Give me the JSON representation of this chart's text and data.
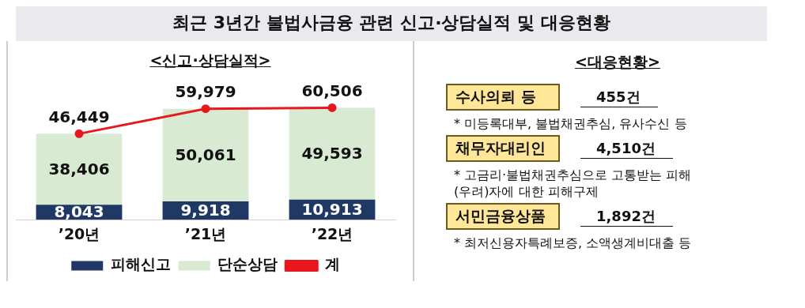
{
  "chart_data": [
    {
      "type": "bar",
      "title": "최근 3년간 불법사금융 관련 신고·상담실적 및 대응현황",
      "subtitle": "<신고·상담실적>",
      "categories": [
        "’20년",
        "’21년",
        "’22년"
      ],
      "stacked": true,
      "legend": "bottom",
      "grid": false,
      "series": [
        {
          "name": "피해신고",
          "color": "#203864",
          "values": [
            8043,
            9918,
            10913
          ],
          "value_labels": [
            "8,043",
            "9,918",
            "10,913"
          ]
        },
        {
          "name": "단순상담",
          "color": "#d9ead3",
          "values": [
            38406,
            50061,
            49593
          ],
          "value_labels": [
            "38,406",
            "50,061",
            "49,593"
          ]
        },
        {
          "name": "계",
          "type": "line",
          "color": "#e8161d",
          "marker": "circle",
          "values": [
            46449,
            59979,
            60506
          ],
          "value_labels": [
            "46,449",
            "59,979",
            "60,506"
          ]
        }
      ]
    },
    {
      "type": "other",
      "title": "<대응현황>",
      "annotations": [
        "수사의뢰 등",
        "455건",
        "* 미등록대부, 불법채권추심, 유사수신 등",
        "채무자대리인",
        "4,510건",
        "* 고금리·불법채권추심으로 고통받는 피해 (우려)자에 대한 피해구제",
        "서민금융상품",
        "1,892건",
        "* 최저신용자특례보증, 소액생계비대출 등"
      ]
    }
  ]
}
